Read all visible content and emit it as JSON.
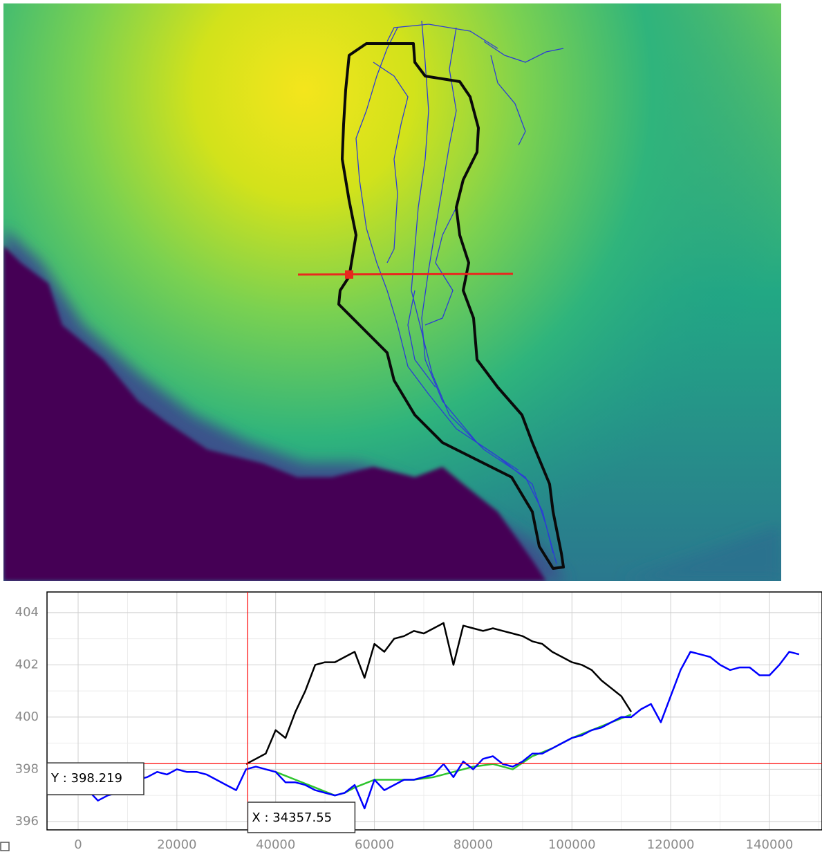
{
  "chart_data": {
    "type": "line",
    "x": [
      0,
      2000,
      4000,
      6000,
      8000,
      10000,
      12000,
      14000,
      16000,
      18000,
      20000,
      22000,
      24000,
      26000,
      28000,
      30000,
      32000,
      34000,
      36000,
      38000,
      40000,
      42000,
      44000,
      46000,
      48000,
      50000,
      52000,
      54000,
      56000,
      58000,
      60000,
      62000,
      64000,
      66000,
      68000,
      70000,
      72000,
      74000,
      76000,
      78000,
      80000,
      82000,
      84000,
      86000,
      88000,
      90000,
      92000,
      94000,
      96000,
      98000,
      100000,
      102000,
      104000,
      106000,
      108000,
      110000,
      112000,
      114000,
      116000,
      118000,
      120000,
      122000,
      124000,
      126000,
      128000,
      130000,
      132000,
      134000,
      136000,
      138000,
      140000,
      142000,
      144000,
      146000
    ],
    "series": [
      {
        "color": "#000000",
        "values": [
          null,
          null,
          null,
          null,
          null,
          null,
          null,
          null,
          null,
          null,
          null,
          null,
          null,
          null,
          null,
          null,
          null,
          398.2,
          398.4,
          398.6,
          399.5,
          399.2,
          400.2,
          401.0,
          402.0,
          402.1,
          402.1,
          402.3,
          402.5,
          401.5,
          402.8,
          402.5,
          403.0,
          403.1,
          403.3,
          403.2,
          403.4,
          403.6,
          402.0,
          403.5,
          403.4,
          403.3,
          403.4,
          403.3,
          403.2,
          403.1,
          402.9,
          402.8,
          402.5,
          402.3,
          402.1,
          402.0,
          401.8,
          401.4,
          401.1,
          400.8,
          400.2,
          null,
          null,
          null,
          null,
          null,
          null,
          null,
          null,
          null,
          null,
          null,
          null,
          null,
          null,
          null,
          null,
          null
        ]
      },
      {
        "color": "#2ec42e",
        "values": [
          null,
          null,
          null,
          null,
          null,
          null,
          null,
          null,
          null,
          null,
          null,
          null,
          null,
          null,
          null,
          null,
          null,
          null,
          null,
          null,
          397.9,
          397.75,
          397.6,
          397.45,
          397.3,
          397.15,
          397.0,
          397.1,
          397.3,
          397.45,
          397.6,
          397.6,
          397.6,
          397.6,
          397.6,
          397.65,
          397.7,
          397.8,
          397.9,
          398.0,
          398.1,
          398.15,
          398.2,
          398.1,
          398.0,
          398.25,
          398.5,
          398.65,
          398.8,
          399.0,
          399.2,
          399.35,
          399.5,
          399.65,
          399.8,
          399.95,
          400.1,
          null,
          null,
          null,
          null,
          null,
          null,
          null,
          null,
          null,
          null,
          null,
          null,
          null,
          null,
          null,
          null,
          null
        ]
      },
      {
        "color": "#0000ff",
        "values": [
          397.3,
          397.2,
          396.8,
          397.0,
          397.1,
          397.3,
          397.6,
          397.7,
          397.9,
          397.8,
          398.0,
          397.9,
          397.9,
          397.8,
          397.6,
          397.4,
          397.2,
          398.0,
          398.1,
          398.0,
          397.9,
          397.5,
          397.5,
          397.4,
          397.2,
          397.1,
          397.0,
          397.1,
          397.4,
          396.5,
          397.6,
          397.2,
          397.4,
          397.6,
          397.6,
          397.7,
          397.8,
          398.2,
          397.7,
          398.3,
          398.0,
          398.4,
          398.5,
          398.2,
          398.1,
          398.3,
          398.6,
          398.6,
          398.8,
          399.0,
          399.2,
          399.3,
          399.5,
          399.6,
          399.8,
          400.0,
          400.0,
          400.3,
          400.5,
          399.8,
          400.8,
          401.8,
          402.5,
          402.4,
          402.3,
          402.0,
          401.8,
          401.9,
          401.9,
          401.6,
          401.6,
          402.0,
          402.5,
          402.4
        ]
      }
    ],
    "xlim": [
      -6300,
      150640
    ],
    "ylim": [
      395.68,
      404.79
    ],
    "xticks": [
      0,
      20000,
      40000,
      60000,
      80000,
      100000,
      120000,
      140000
    ],
    "yticks": [
      396,
      398,
      400,
      402,
      404
    ],
    "minor_xticks": [
      10000,
      30000,
      50000,
      70000,
      90000,
      110000,
      130000,
      150000
    ],
    "minor_yticks": [
      397,
      399,
      401,
      403
    ],
    "grid": true,
    "cursor": {
      "color": "#ff0000",
      "x": {
        "value": 34357.55,
        "label": "X : 34357.55"
      },
      "y": {
        "value": 398.219,
        "label": "Y : 398.219"
      }
    }
  }
}
